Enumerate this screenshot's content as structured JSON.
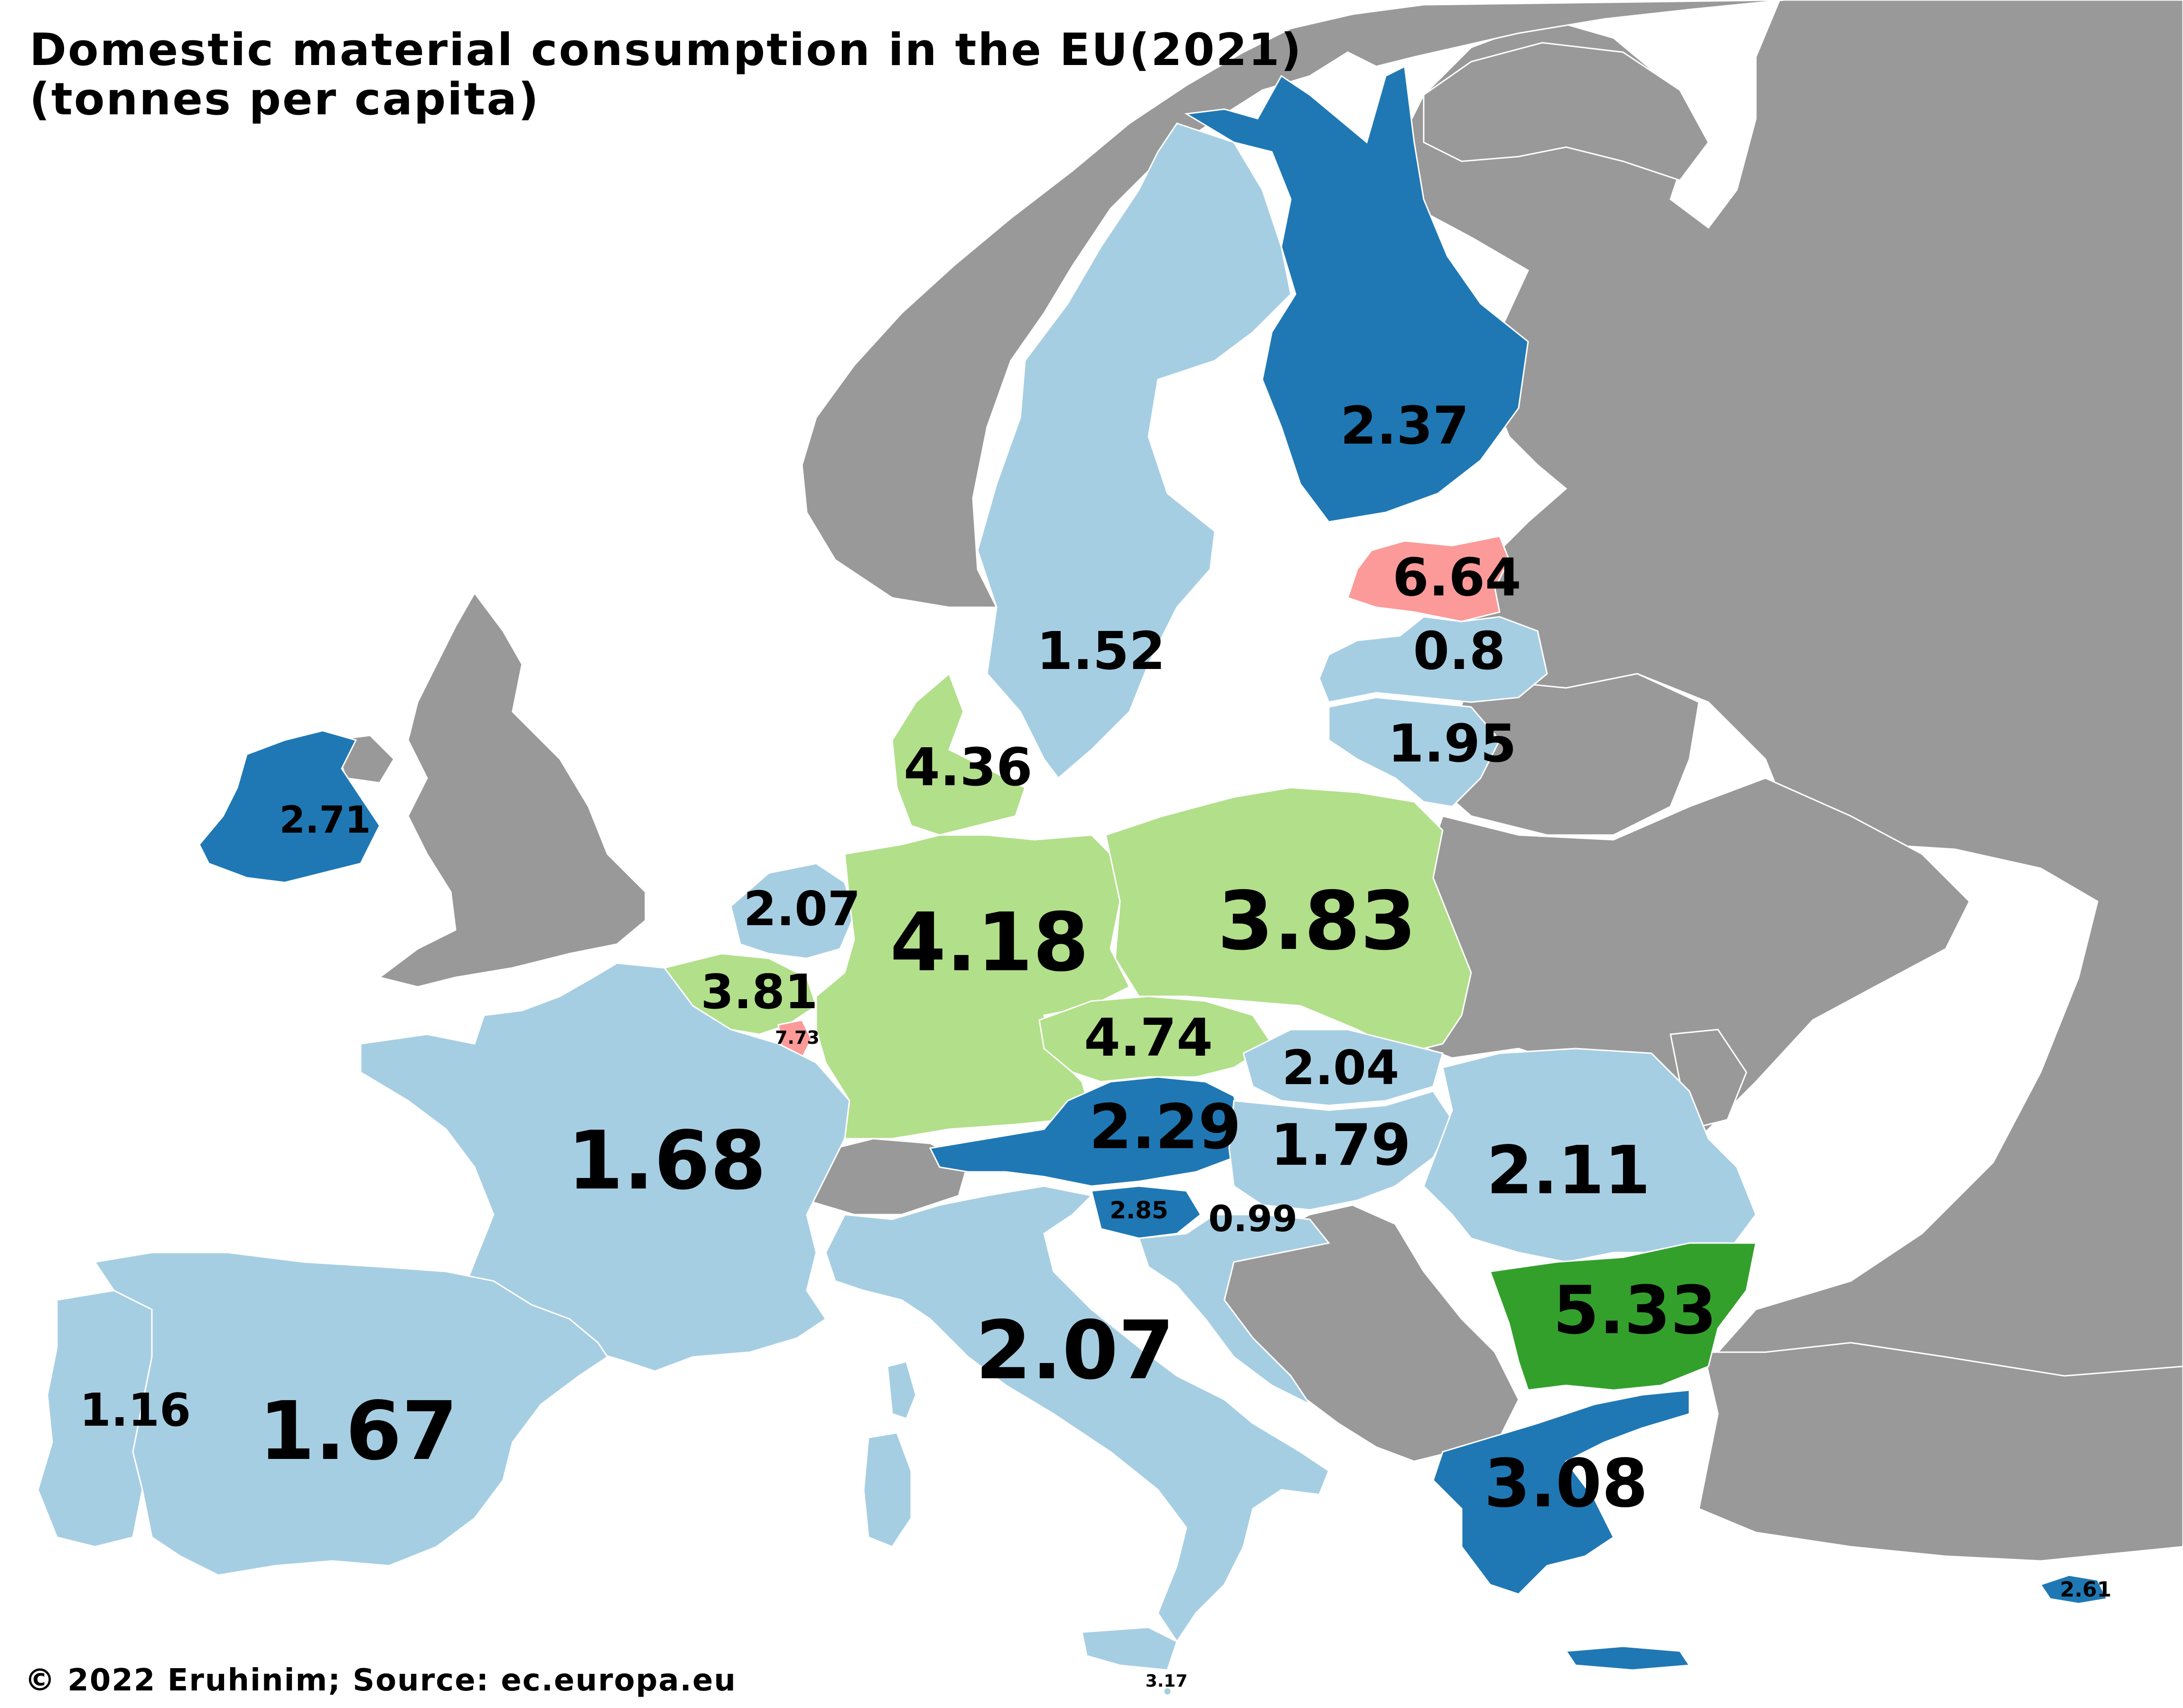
{
  "title": {
    "line1": "Domestic material consumption in the EU(2021)",
    "line2": "(tonnes per capita)"
  },
  "credit": "© 2022 Eruhinim; Source: ec.europa.eu",
  "colors": {
    "sea": "#ffffff",
    "non_eu": "#999999",
    "lowest_tier": "#a6cee3",
    "low_tier": "#1f78b4",
    "mid_tier": "#b2df8a",
    "high_tier": "#33a02c",
    "highest_tier": "#fb9a99"
  },
  "values": {
    "finland": "2.37",
    "sweden": "1.52",
    "estonia": "6.64",
    "latvia": "0.8",
    "lithuania": "1.95",
    "denmark": "4.36",
    "ireland": "2.71",
    "netherlands": "2.07",
    "germany": "4.18",
    "poland": "3.83",
    "belgium": "3.81",
    "luxembourg": "7.73",
    "czechia": "4.74",
    "slovakia": "2.04",
    "france": "1.68",
    "austria": "2.29",
    "hungary": "1.79",
    "romania": "2.11",
    "slovenia": "2.85",
    "croatia": "0.99",
    "bulgaria": "5.33",
    "italy": "2.07",
    "portugal": "1.16",
    "spain": "1.67",
    "greece": "3.08",
    "cyprus": "2.61",
    "malta": "3.17"
  }
}
